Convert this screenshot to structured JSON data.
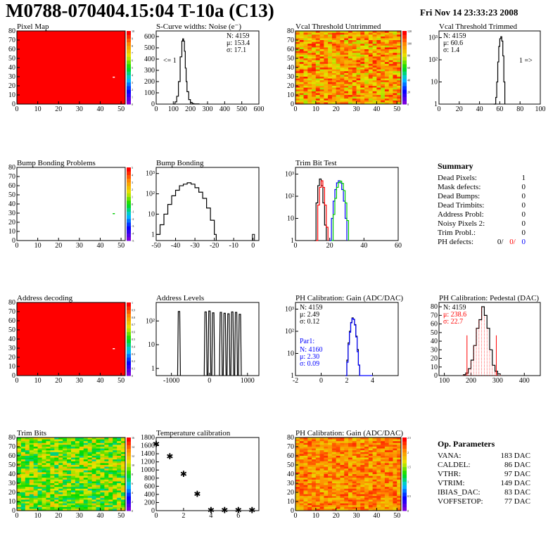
{
  "header": {
    "title": "M0788-070404.15:04 T-10a (C13)",
    "date": "Fri Nov 14 23:33:23 2008"
  },
  "summary": {
    "title": "Summary",
    "rows": [
      {
        "label": "Dead Pixels:",
        "value": "1"
      },
      {
        "label": "Mask defects:",
        "value": "0"
      },
      {
        "label": "Dead Bumps:",
        "value": "0"
      },
      {
        "label": "Dead Trimbits:",
        "value": "0"
      },
      {
        "label": "Address Probl:",
        "value": "0"
      },
      {
        "label": "Noisy Pixels 2:",
        "value": "0"
      },
      {
        "label": "Trim Probl.:",
        "value": "0"
      }
    ],
    "ph_defects": {
      "label": "PH defects:",
      "v1": "0/",
      "v2": "0/",
      "v3": "0"
    }
  },
  "op_params": {
    "title": "Op. Parameters",
    "rows": [
      {
        "label": "VANA:",
        "value": "183 DAC"
      },
      {
        "label": "CALDEL:",
        "value": "86 DAC"
      },
      {
        "label": "VTHR:",
        "value": "97 DAC"
      },
      {
        "label": "VTRIM:",
        "value": "149 DAC"
      },
      {
        "label": "IBIAS_DAC:",
        "value": "83 DAC"
      },
      {
        "label": "VOFFSETOP:",
        "value": "77 DAC"
      }
    ]
  },
  "colors": {
    "red": "#ff0000",
    "blue": "#0000ff",
    "green": "#00cc00",
    "black": "#000000"
  },
  "chart_data": [
    {
      "type": "heatmap",
      "title": "Pixel Map",
      "xticks": [
        "0",
        "10",
        "20",
        "30",
        "40",
        "50"
      ],
      "yticks": [
        "0",
        "10",
        "20",
        "30",
        "40",
        "50",
        "60",
        "70",
        "80"
      ],
      "xlim": [
        0,
        52
      ],
      "ylim": [
        0,
        80
      ],
      "scale": [
        "0",
        "1",
        "2",
        "3",
        "4",
        "5",
        "6",
        "7",
        "8",
        "9",
        "10"
      ],
      "pattern": "uniform-red",
      "defects": [
        {
          "x": 46,
          "y": 30
        }
      ]
    },
    {
      "type": "line",
      "title": "S-Curve widths: Noise (e⁻)",
      "xticks": [
        "0",
        "100",
        "200",
        "300",
        "400",
        "500",
        "600"
      ],
      "yticks": [
        "0",
        "100",
        "200",
        "300",
        "400",
        "500",
        "600"
      ],
      "xlim": [
        0,
        600
      ],
      "ylim": [
        0,
        650
      ],
      "x": [
        100,
        110,
        120,
        130,
        140,
        150,
        155,
        160,
        165,
        170,
        175,
        180,
        190,
        200,
        210,
        220,
        250
      ],
      "values": [
        0,
        20,
        70,
        200,
        420,
        560,
        580,
        560,
        470,
        320,
        200,
        110,
        40,
        15,
        5,
        2,
        0
      ],
      "stats": [
        "N: 4159",
        "μ: 153.4",
        "σ: 17.1"
      ],
      "annotation": "<= 1"
    },
    {
      "type": "heatmap",
      "title": "Vcal Threshold Untrimmed",
      "xticks": [
        "0",
        "10",
        "20",
        "30",
        "40",
        "50"
      ],
      "yticks": [
        "0",
        "10",
        "20",
        "30",
        "40",
        "50",
        "60",
        "70",
        "80"
      ],
      "xlim": [
        0,
        52
      ],
      "ylim": [
        0,
        80
      ],
      "scale": [
        "0",
        "20",
        "40",
        "60",
        "80",
        "100",
        "120"
      ],
      "pattern": "noise-orange"
    },
    {
      "type": "line",
      "title": "Vcal Threshold Trimmed",
      "log_y": true,
      "xticks": [
        "0",
        "20",
        "40",
        "60",
        "80",
        "100"
      ],
      "yticks": [
        "1",
        "10",
        "10²",
        "10³"
      ],
      "xlim": [
        0,
        100
      ],
      "ylim": [
        1,
        2000
      ],
      "x": [
        54,
        56,
        57,
        58,
        59,
        60,
        61,
        62,
        63,
        64,
        65
      ],
      "values": [
        1,
        2,
        10,
        80,
        400,
        900,
        1100,
        700,
        150,
        10,
        1
      ],
      "stats": [
        "N: 4159",
        "μ: 60.6",
        "σ: 1.4"
      ],
      "annotation": "1 =>"
    },
    {
      "type": "heatmap",
      "title": "Bump Bonding Problems",
      "xticks": [
        "0",
        "10",
        "20",
        "30",
        "40",
        "50"
      ],
      "yticks": [
        "0",
        "10",
        "20",
        "30",
        "40",
        "50",
        "60",
        "70",
        "80"
      ],
      "xlim": [
        0,
        52
      ],
      "ylim": [
        0,
        80
      ],
      "scale": [
        "-5",
        "-4",
        "-3",
        "-2",
        "-1",
        "0",
        "1",
        "2",
        "3",
        "4",
        "5"
      ],
      "pattern": "empty",
      "defects": [
        {
          "x": 46,
          "y": 30
        }
      ]
    },
    {
      "type": "line",
      "title": "Bump Bonding",
      "log_y": true,
      "xticks": [
        "-50",
        "-40",
        "-30",
        "-20",
        "-10",
        "0"
      ],
      "yticks": [
        "1",
        "10",
        "10²",
        "10³"
      ],
      "xlim": [
        -50,
        3
      ],
      "ylim": [
        0.5,
        2000
      ],
      "x": [
        -50,
        -48,
        -46,
        -44,
        -42,
        -40,
        -38,
        -36,
        -34,
        -32,
        -30,
        -28,
        -26,
        -24,
        -22,
        -20,
        -19
      ],
      "values": [
        1,
        3,
        10,
        30,
        80,
        150,
        250,
        300,
        350,
        300,
        200,
        120,
        60,
        20,
        5,
        1,
        0
      ],
      "spike": {
        "x": 0,
        "value": 1
      }
    },
    {
      "type": "line",
      "title": "Trim Bit Test",
      "log_y": true,
      "xticks": [
        "0",
        "20",
        "40",
        "60"
      ],
      "yticks": [
        "1",
        "10",
        "10²",
        "10³"
      ],
      "xlim": [
        0,
        60
      ],
      "ylim": [
        1,
        2000
      ],
      "series": [
        {
          "color": "black",
          "x": [
            11,
            12,
            13,
            14,
            15,
            16,
            17,
            18
          ],
          "values": [
            1,
            50,
            300,
            600,
            300,
            50,
            5,
            1
          ]
        },
        {
          "color": "red",
          "x": [
            12,
            13,
            14,
            15,
            16,
            17,
            18,
            19
          ],
          "values": [
            1,
            40,
            250,
            500,
            250,
            40,
            4,
            1
          ]
        },
        {
          "color": "blue",
          "x": [
            20,
            21,
            22,
            23,
            24,
            25,
            26,
            27,
            28,
            29,
            30
          ],
          "values": [
            1,
            10,
            60,
            200,
            400,
            500,
            400,
            200,
            60,
            10,
            1
          ]
        },
        {
          "color": "green",
          "x": [
            21,
            22,
            23,
            24,
            25,
            26,
            27,
            28,
            29,
            30,
            31
          ],
          "values": [
            1,
            15,
            80,
            250,
            420,
            480,
            380,
            180,
            50,
            8,
            1
          ]
        }
      ]
    },
    {
      "type": "heatmap",
      "title": "Address decoding",
      "xticks": [
        "0",
        "10",
        "20",
        "30",
        "40",
        "50"
      ],
      "yticks": [
        "0",
        "10",
        "20",
        "30",
        "40",
        "50",
        "60",
        "70",
        "80"
      ],
      "xlim": [
        0,
        52
      ],
      "ylim": [
        0,
        80
      ],
      "scale": [
        "0",
        "0.1",
        "0.2",
        "0.3",
        "0.4",
        "0.5",
        "0.6",
        "0.7",
        "0.8",
        "0.9",
        "1"
      ],
      "pattern": "uniform-red",
      "defects": [
        {
          "x": 46,
          "y": 30
        }
      ]
    },
    {
      "type": "bar",
      "title": "Address Levels",
      "log_y": true,
      "xticks": [
        "-1000",
        "0",
        "1000"
      ],
      "yticks": [
        "1",
        "10",
        "10²"
      ],
      "xlim": [
        -1400,
        1300
      ],
      "ylim": [
        0.5,
        600
      ],
      "peaks": [
        -800,
        -100,
        0,
        100,
        300,
        400,
        500,
        600,
        700,
        800
      ],
      "values": [
        250,
        240,
        260,
        220,
        230,
        210,
        200,
        240,
        230,
        190
      ]
    },
    {
      "type": "line",
      "title": "PH Calibration: Gain (ADC/DAC)",
      "log_y": true,
      "xticks": [
        "-2",
        "0",
        "2",
        "4"
      ],
      "yticks": [
        "1",
        "10",
        "10²",
        "10³"
      ],
      "xlim": [
        -2,
        6
      ],
      "ylim": [
        1,
        2000
      ],
      "series": [
        {
          "color": "black",
          "x": [
            1.9,
            2.0,
            2.1,
            2.2,
            2.3,
            2.4,
            2.5,
            2.6,
            2.7,
            2.8,
            2.9,
            3.0
          ],
          "values": [
            1,
            5,
            30,
            100,
            250,
            400,
            350,
            200,
            60,
            15,
            3,
            1
          ]
        },
        {
          "color": "blue",
          "x": [
            1.9,
            2.0,
            2.1,
            2.2,
            2.3,
            2.4,
            2.5,
            2.6,
            2.7,
            2.8,
            2.9,
            3.0,
            3.5,
            4.0
          ],
          "values": [
            1,
            4,
            25,
            90,
            240,
            380,
            340,
            190,
            55,
            12,
            3,
            1,
            1,
            1
          ]
        }
      ],
      "stats": [
        "N: 4159",
        "μ: 2.49",
        "σ: 0.12"
      ],
      "stats2": {
        "title": "Par1:",
        "lines": [
          "N: 4160",
          "μ: 2.30",
          "σ: 0.09"
        ]
      }
    },
    {
      "type": "line",
      "title": "PH Calibration: Pedestal (DAC)",
      "xticks": [
        "100",
        "200",
        "300",
        "400"
      ],
      "yticks": [
        "0",
        "10",
        "20",
        "30",
        "40",
        "50",
        "60",
        "70",
        "80"
      ],
      "xlim": [
        80,
        460
      ],
      "ylim": [
        0,
        85
      ],
      "x": [
        170,
        180,
        190,
        200,
        210,
        220,
        230,
        240,
        250,
        260,
        270,
        280,
        290,
        300,
        310
      ],
      "values": [
        1,
        3,
        8,
        18,
        35,
        55,
        65,
        80,
        70,
        55,
        30,
        12,
        5,
        2,
        1
      ],
      "stats": [
        "N: 4159",
        "μ: 238.6",
        "σ: 22.7"
      ],
      "markers": [
        185,
        295
      ]
    },
    {
      "type": "heatmap",
      "title": "Trim Bits",
      "xticks": [
        "0",
        "10",
        "20",
        "30",
        "40",
        "50"
      ],
      "yticks": [
        "0",
        "10",
        "20",
        "30",
        "40",
        "50",
        "60",
        "70",
        "80"
      ],
      "xlim": [
        0,
        52
      ],
      "ylim": [
        0,
        80
      ],
      "scale": [
        "0",
        "2",
        "4",
        "6",
        "8",
        "10",
        "12",
        "14",
        "16"
      ],
      "pattern": "noise-green"
    },
    {
      "type": "scatter",
      "title": "Temperature calibration",
      "xticks": [
        "0",
        "2",
        "4",
        "6"
      ],
      "yticks": [
        "0",
        "200",
        "400",
        "600",
        "800",
        "1000",
        "1200",
        "1400",
        "1600",
        "1800"
      ],
      "xlim": [
        0,
        7.5
      ],
      "ylim": [
        0,
        1800
      ],
      "x": [
        0,
        1,
        2,
        3,
        4,
        5,
        6,
        7
      ],
      "values": [
        1650,
        1350,
        920,
        420,
        30,
        30,
        30,
        30
      ]
    },
    {
      "type": "heatmap",
      "title": "PH Calibration: Gain (ADC/DAC)",
      "xticks": [
        "0",
        "10",
        "20",
        "30",
        "40",
        "50"
      ],
      "yticks": [
        "0",
        "10",
        "20",
        "30",
        "40",
        "50",
        "60",
        "70",
        "80"
      ],
      "xlim": [
        0,
        52
      ],
      "ylim": [
        0,
        80
      ],
      "scale": [
        "0",
        "0.5",
        "1",
        "1.5",
        "2",
        "2.5"
      ],
      "pattern": "noise-orange2"
    }
  ]
}
